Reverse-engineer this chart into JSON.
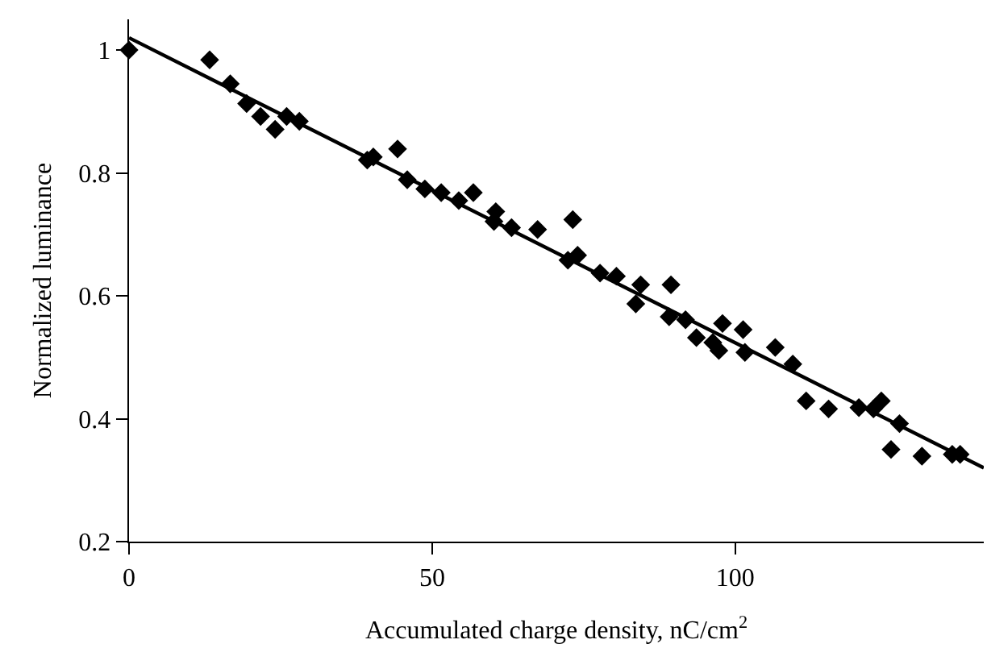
{
  "chart_data": {
    "type": "scatter",
    "xlabel": "Accumulated charge density, nC/cm$^{2}$",
    "ylabel": "Normalized luminance",
    "xlim": [
      0,
      141
    ],
    "ylim": [
      0.2,
      1.05
    ],
    "xticks": [
      0,
      50,
      100
    ],
    "yticks": [
      0.2,
      0.4,
      0.6,
      0.8,
      1
    ],
    "series": [
      {
        "marker": "diamond",
        "color": "#000000",
        "x": [
          0,
          13.3,
          16.7,
          19.4,
          21.7,
          24.1,
          26.0,
          28.1,
          39.3,
          40.3,
          44.3,
          45.9,
          48.8,
          51.5,
          54.4,
          56.8,
          60.2,
          60.5,
          63.1,
          67.4,
          73.2,
          72.4,
          74.0,
          77.7,
          80.4,
          84.4,
          83.6,
          89.4,
          89.1,
          91.8,
          93.6,
          97.9,
          96.3,
          97.3,
          101.3,
          101.6,
          106.6,
          109.5,
          111.7,
          115.4,
          120.4,
          122.8,
          124.1,
          127.1,
          125.7,
          130.8,
          135.8,
          137.1
        ],
        "values": [
          1.0,
          0.984,
          0.945,
          0.913,
          0.892,
          0.871,
          0.892,
          0.884,
          0.821,
          0.826,
          0.839,
          0.789,
          0.774,
          0.768,
          0.755,
          0.768,
          0.721,
          0.737,
          0.711,
          0.708,
          0.724,
          0.658,
          0.666,
          0.637,
          0.632,
          0.618,
          0.587,
          0.618,
          0.566,
          0.561,
          0.532,
          0.555,
          0.524,
          0.511,
          0.545,
          0.508,
          0.516,
          0.489,
          0.429,
          0.416,
          0.418,
          0.416,
          0.429,
          0.392,
          0.35,
          0.339,
          0.342,
          0.342
        ]
      },
      {
        "type": "line",
        "color": "#000000",
        "x": [
          0,
          141
        ],
        "values": [
          1.02,
          0.32
        ]
      }
    ]
  }
}
